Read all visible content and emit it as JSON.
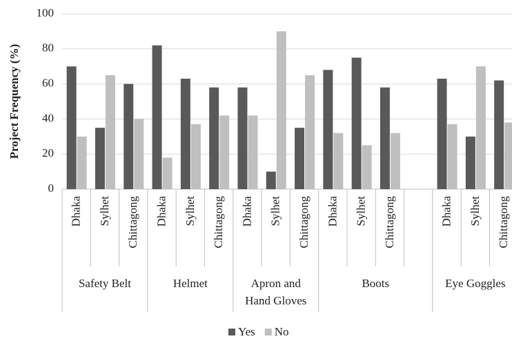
{
  "chart_data": {
    "type": "bar",
    "y_label": "Project Frequency (%)",
    "groups": [
      {
        "name": "Safety Belt",
        "categories": [
          "Dhaka",
          "Sylhet",
          "Chittagong"
        ]
      },
      {
        "name": "Helmet",
        "categories": [
          "Dhaka",
          "Sylhet",
          "Chittagong"
        ]
      },
      {
        "name": [
          "Apron and",
          "Hand Gloves"
        ],
        "categories": [
          "Dhaka",
          "Sylhet",
          "Chittagong"
        ]
      },
      {
        "name": "Boots",
        "categories": [
          "Dhaka",
          "Sylhet",
          "Chittagong",
          null
        ]
      },
      {
        "name": "Eye Goggles",
        "categories": [
          "Dhaka",
          "Sylhet",
          "Chittagong"
        ]
      }
    ],
    "series": [
      {
        "name": "Yes",
        "color": "#595959",
        "values": [
          70,
          35,
          60,
          82,
          63,
          58,
          58,
          10,
          35,
          68,
          75,
          58,
          null,
          63,
          30,
          62
        ]
      },
      {
        "name": "No",
        "color": "#bfbfbf",
        "values": [
          30,
          65,
          40,
          18,
          37,
          42,
          42,
          90,
          65,
          32,
          25,
          32,
          null,
          37,
          70,
          38
        ]
      }
    ],
    "ylim": [
      0,
      100
    ],
    "yticks": [
      0,
      20,
      40,
      60,
      80,
      100
    ],
    "grid": true,
    "legend": "bottom"
  }
}
